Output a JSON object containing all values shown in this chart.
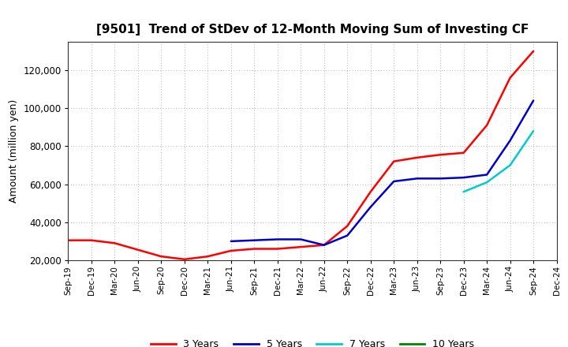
{
  "title": "[9501]  Trend of StDev of 12-Month Moving Sum of Investing CF",
  "ylabel": "Amount (million yen)",
  "background_color": "#ffffff",
  "grid_color": "#999999",
  "x_labels": [
    "Sep-19",
    "Dec-19",
    "Mar-20",
    "Jun-20",
    "Sep-20",
    "Dec-20",
    "Mar-21",
    "Jun-21",
    "Sep-21",
    "Dec-21",
    "Mar-22",
    "Jun-22",
    "Sep-22",
    "Dec-22",
    "Mar-23",
    "Jun-23",
    "Sep-23",
    "Dec-23",
    "Mar-24",
    "Jun-24",
    "Sep-24",
    "Dec-24"
  ],
  "series": {
    "3 Years": {
      "color": "#ff0000",
      "data_x": [
        0,
        1,
        2,
        3,
        4,
        5,
        6,
        7,
        8,
        9,
        10,
        11,
        12,
        13,
        14,
        15,
        16,
        17,
        18,
        19,
        20
      ],
      "data_y": [
        30500,
        30500,
        29000,
        25500,
        22000,
        20500,
        22000,
        25000,
        26000,
        26000,
        27000,
        28000,
        38000,
        56000,
        72000,
        74000,
        75500,
        76500,
        91000,
        116000,
        130000
      ]
    },
    "5 Years": {
      "color": "#0000cc",
      "data_x": [
        7,
        8,
        9,
        10,
        11,
        12,
        13,
        14,
        15,
        16,
        17,
        18,
        19,
        20
      ],
      "data_y": [
        30000,
        30500,
        31000,
        31000,
        28000,
        33000,
        48000,
        61500,
        63000,
        63000,
        63500,
        65000,
        83000,
        104000
      ]
    },
    "7 Years": {
      "color": "#00cccc",
      "data_x": [
        17,
        18,
        19,
        20
      ],
      "data_y": [
        56000,
        61000,
        70000,
        88000
      ]
    },
    "10 Years": {
      "color": "#008800",
      "data_x": [],
      "data_y": []
    }
  },
  "ylim": [
    20000,
    135000
  ],
  "yticks": [
    20000,
    40000,
    60000,
    80000,
    100000,
    120000
  ],
  "legend_items": [
    "3 Years",
    "5 Years",
    "7 Years",
    "10 Years"
  ],
  "legend_colors": [
    "#ff0000",
    "#0000cc",
    "#00cccc",
    "#008800"
  ]
}
